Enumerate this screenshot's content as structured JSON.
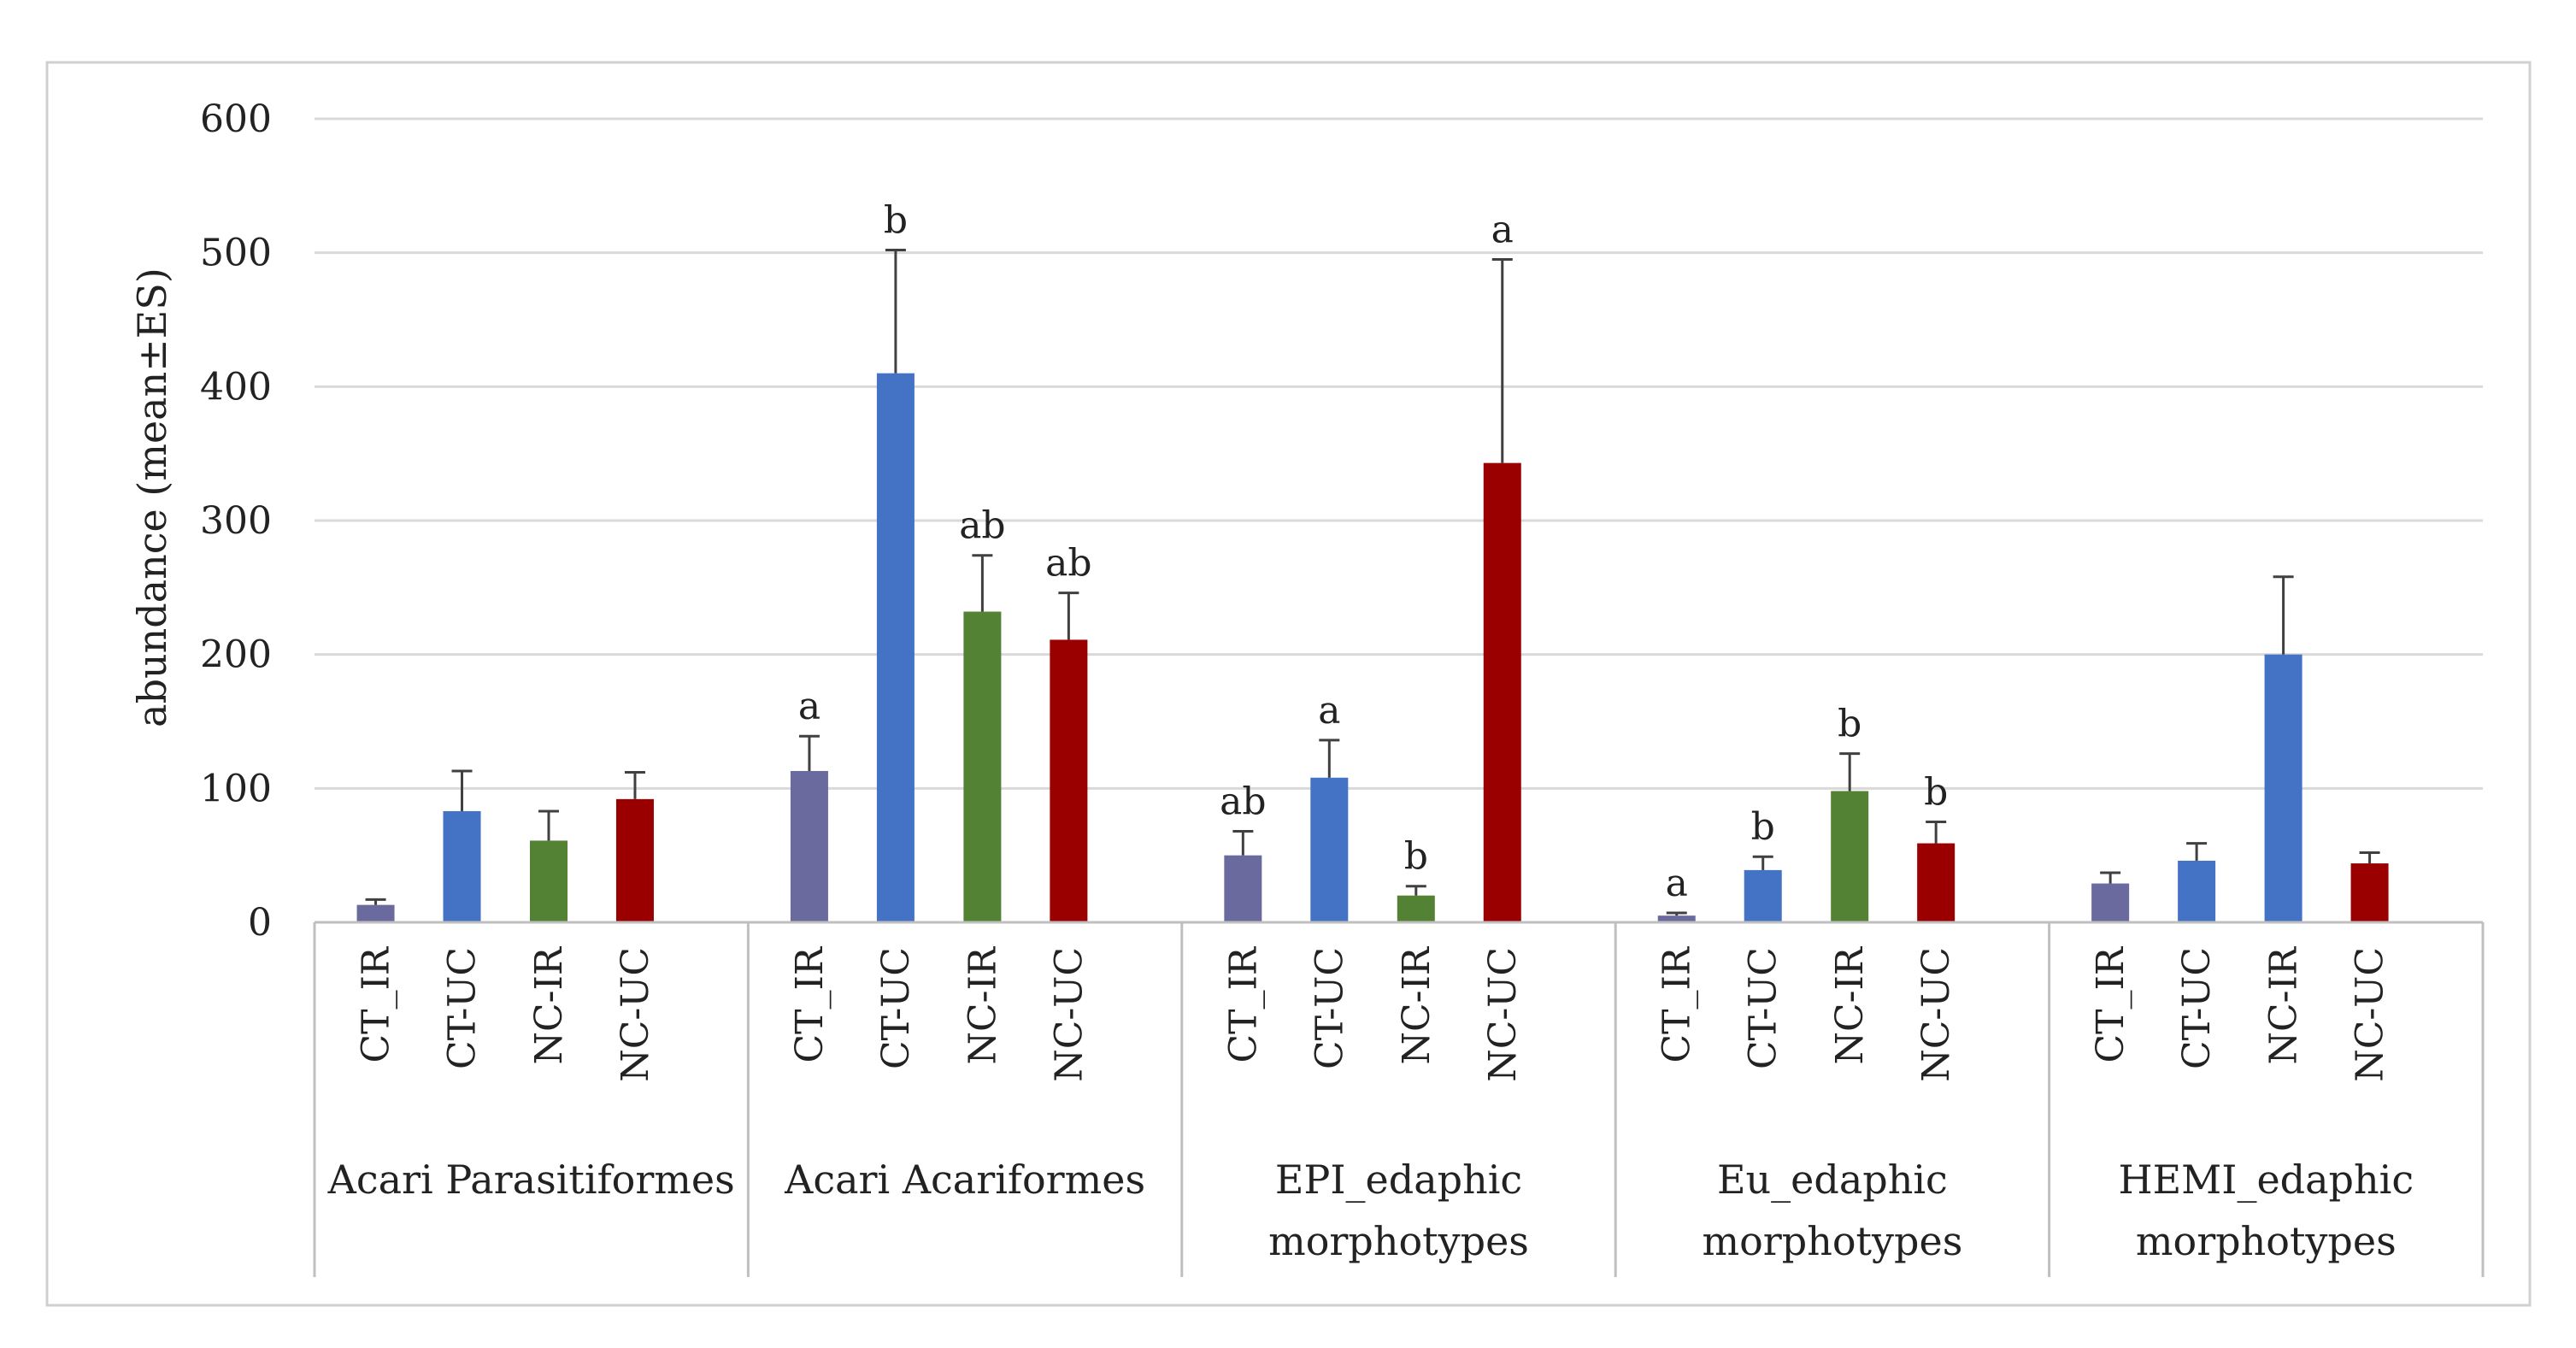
{
  "chart_data": {
    "type": "bar",
    "ylabel": "abundance (mean±ES)",
    "ylim": [
      0,
      600
    ],
    "yticks": [
      0,
      100,
      200,
      300,
      400,
      500,
      600
    ],
    "grid": true,
    "legend": "none",
    "groups": [
      {
        "name": "Acari Parasitiformes",
        "label_lines": [
          "Acari Parasitiformes"
        ],
        "bars": [
          {
            "category": "CT_IR",
            "value": 13,
            "error": 4,
            "sig": ""
          },
          {
            "category": "CT-UC",
            "value": 83,
            "error": 30,
            "sig": ""
          },
          {
            "category": "NC-IR",
            "value": 61,
            "error": 22,
            "sig": ""
          },
          {
            "category": "NC-UC",
            "value": 92,
            "error": 20,
            "sig": ""
          }
        ]
      },
      {
        "name": "Acari Acariformes",
        "label_lines": [
          "Acari Acariformes"
        ],
        "bars": [
          {
            "category": "CT_IR",
            "value": 113,
            "error": 26,
            "sig": "a"
          },
          {
            "category": "CT-UC",
            "value": 410,
            "error": 92,
            "sig": "b"
          },
          {
            "category": "NC-IR",
            "value": 232,
            "error": 42,
            "sig": "ab"
          },
          {
            "category": "NC-UC",
            "value": 211,
            "error": 35,
            "sig": "ab"
          }
        ]
      },
      {
        "name": "EPI_edaphic morphotypes",
        "label_lines": [
          "EPI_edaphic",
          "morphotypes"
        ],
        "bars": [
          {
            "category": "CT_IR",
            "value": 50,
            "error": 18,
            "sig": "ab"
          },
          {
            "category": "CT-UC",
            "value": 108,
            "error": 28,
            "sig": "a"
          },
          {
            "category": "NC-IR",
            "value": 20,
            "error": 7,
            "sig": "b"
          },
          {
            "category": "NC-UC",
            "value": 343,
            "error": 152,
            "sig": "a"
          }
        ]
      },
      {
        "name": "Eu_edaphic morphotypes",
        "label_lines": [
          "Eu_edaphic",
          "morphotypes"
        ],
        "bars": [
          {
            "category": "CT_IR",
            "value": 5,
            "error": 2,
            "sig": "a"
          },
          {
            "category": "CT-UC",
            "value": 39,
            "error": 10,
            "sig": "b"
          },
          {
            "category": "NC-IR",
            "value": 98,
            "error": 28,
            "sig": "b"
          },
          {
            "category": "NC-UC",
            "value": 59,
            "error": 16,
            "sig": "b"
          }
        ]
      },
      {
        "name": "HEMI_edaphic morphotypes",
        "label_lines": [
          "HEMI_edaphic",
          "morphotypes"
        ],
        "bars": [
          {
            "category": "CT_IR",
            "value": 29,
            "error": 8,
            "sig": ""
          },
          {
            "category": "CT-UC",
            "value": 46,
            "error": 13,
            "sig": ""
          },
          {
            "category": "NC-IR",
            "value": 200,
            "error": 58,
            "sig": ""
          },
          {
            "category": "NC-UC",
            "value": 44,
            "error": 8,
            "sig": ""
          }
        ]
      }
    ]
  },
  "colors": {
    "bar_colors": {
      "CT_IR": "#6a6a9e",
      "CT-UC": "#4472c4",
      "NC-IR": "#548235",
      "NC-UC": "#9a0000"
    },
    "group_overrides": {
      "HEMI_edaphic morphotypes": {
        "NC-IR": "#4472c4"
      }
    },
    "grid": "#d9d9d9",
    "axis": "#bfbfbf",
    "error_bar": "#404040",
    "frame": "#d0d0d0"
  }
}
